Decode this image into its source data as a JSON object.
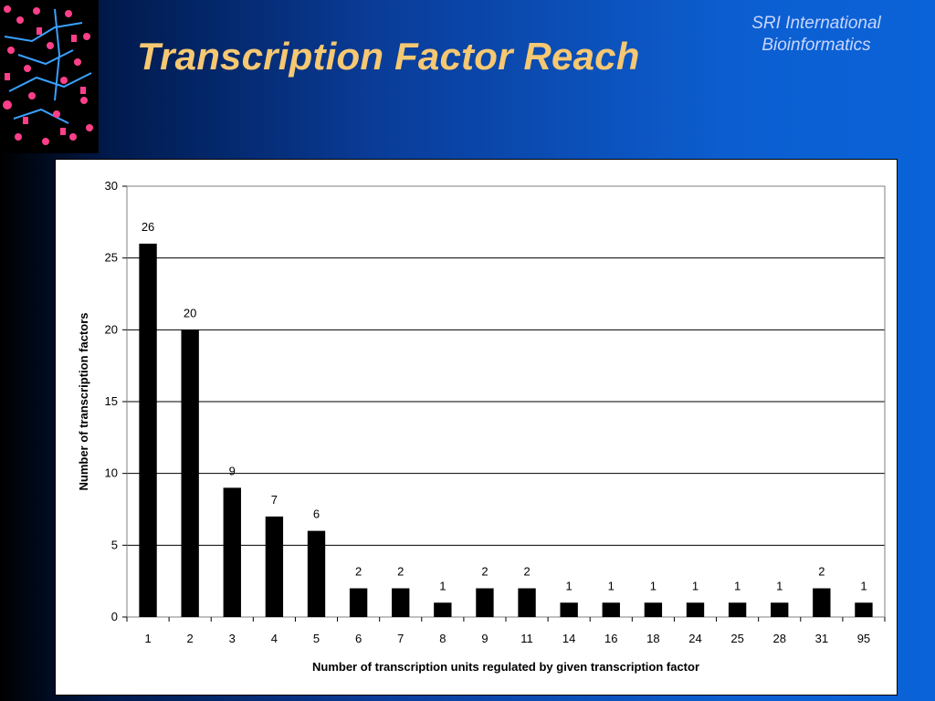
{
  "slide": {
    "title": "Transcription Factor Reach",
    "org_line1": "SRI International",
    "org_line2": "Bioinformatics"
  },
  "colors": {
    "title": "#f6c872",
    "bar": "#000000",
    "gridline": "#000000",
    "panel": "#ffffff"
  },
  "chart_data": {
    "type": "bar",
    "categories": [
      "1",
      "2",
      "3",
      "4",
      "5",
      "6",
      "7",
      "8",
      "9",
      "11",
      "14",
      "16",
      "18",
      "24",
      "25",
      "28",
      "31",
      "95"
    ],
    "values": [
      26,
      20,
      9,
      7,
      6,
      2,
      2,
      1,
      2,
      2,
      1,
      1,
      1,
      1,
      1,
      1,
      2,
      1
    ],
    "xlabel": "Number of transcription units regulated by given transcription factor",
    "ylabel": "Number of transcription factors",
    "ylim": [
      0,
      30
    ],
    "yticks": [
      0,
      5,
      10,
      15,
      20,
      25,
      30
    ],
    "grid": true,
    "data_labels": true,
    "legend": "none"
  }
}
